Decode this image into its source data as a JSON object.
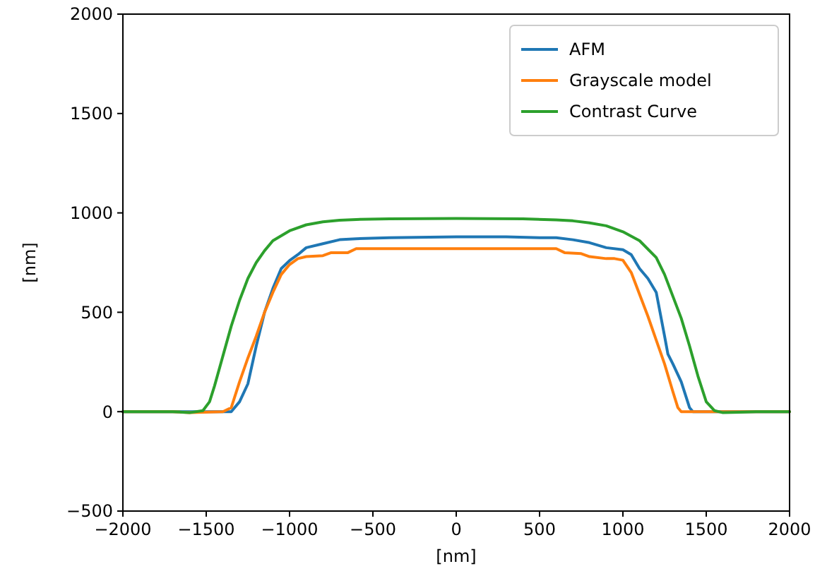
{
  "chart_data": {
    "type": "line",
    "xlabel": "[nm]",
    "ylabel": "[nm]",
    "xlim": [
      -2000,
      2000
    ],
    "ylim": [
      -500,
      2000
    ],
    "xticks": [
      -2000,
      -1500,
      -1000,
      -500,
      0,
      500,
      1000,
      1500,
      2000
    ],
    "yticks": [
      -500,
      0,
      500,
      1000,
      1500,
      2000
    ],
    "grid": false,
    "legend": "top right",
    "marker": "none",
    "line_style": "solid",
    "series": [
      {
        "name": "AFM",
        "color": "#1f77b4",
        "x": [
          -2000,
          -1400,
          -1350,
          -1300,
          -1250,
          -1200,
          -1150,
          -1100,
          -1050,
          -1000,
          -950,
          -900,
          -800,
          -700,
          -600,
          -400,
          0,
          300,
          500,
          600,
          700,
          800,
          900,
          1000,
          1050,
          1100,
          1150,
          1200,
          1250,
          1270,
          1300,
          1350,
          1400,
          1420,
          2000
        ],
        "values": [
          0,
          0,
          0,
          50,
          140,
          330,
          500,
          620,
          720,
          760,
          790,
          825,
          845,
          865,
          870,
          875,
          880,
          880,
          875,
          875,
          865,
          850,
          825,
          815,
          790,
          720,
          670,
          600,
          380,
          290,
          240,
          150,
          20,
          0,
          0
        ]
      },
      {
        "name": "Grayscale model",
        "color": "#ff7f0e",
        "x": [
          -2000,
          -1700,
          -1600,
          -1400,
          -1350,
          -1300,
          -1250,
          -1200,
          -1150,
          -1100,
          -1050,
          -1000,
          -950,
          -900,
          -800,
          -750,
          -650,
          -600,
          600,
          650,
          750,
          800,
          900,
          950,
          1000,
          1050,
          1100,
          1150,
          1200,
          1250,
          1300,
          1330,
          1350,
          1600,
          2000
        ],
        "values": [
          0,
          0,
          -5,
          0,
          20,
          150,
          270,
          380,
          500,
          600,
          690,
          740,
          770,
          780,
          785,
          800,
          800,
          820,
          820,
          800,
          795,
          780,
          770,
          770,
          762,
          700,
          590,
          480,
          360,
          240,
          100,
          20,
          0,
          0,
          0
        ]
      },
      {
        "name": "Contrast Curve",
        "color": "#2ca02c",
        "x": [
          -2000,
          -1700,
          -1600,
          -1520,
          -1480,
          -1450,
          -1400,
          -1350,
          -1300,
          -1250,
          -1200,
          -1150,
          -1100,
          -1000,
          -900,
          -800,
          -700,
          -600,
          -400,
          0,
          400,
          600,
          700,
          800,
          900,
          1000,
          1100,
          1200,
          1250,
          1300,
          1350,
          1400,
          1450,
          1500,
          1550,
          1600,
          1700,
          1800,
          2000
        ],
        "values": [
          0,
          0,
          -5,
          5,
          50,
          130,
          280,
          430,
          560,
          670,
          750,
          810,
          860,
          910,
          940,
          955,
          963,
          967,
          970,
          972,
          970,
          965,
          960,
          950,
          935,
          905,
          860,
          775,
          690,
          580,
          470,
          330,
          180,
          50,
          5,
          -5,
          -3,
          0,
          0
        ]
      }
    ]
  }
}
